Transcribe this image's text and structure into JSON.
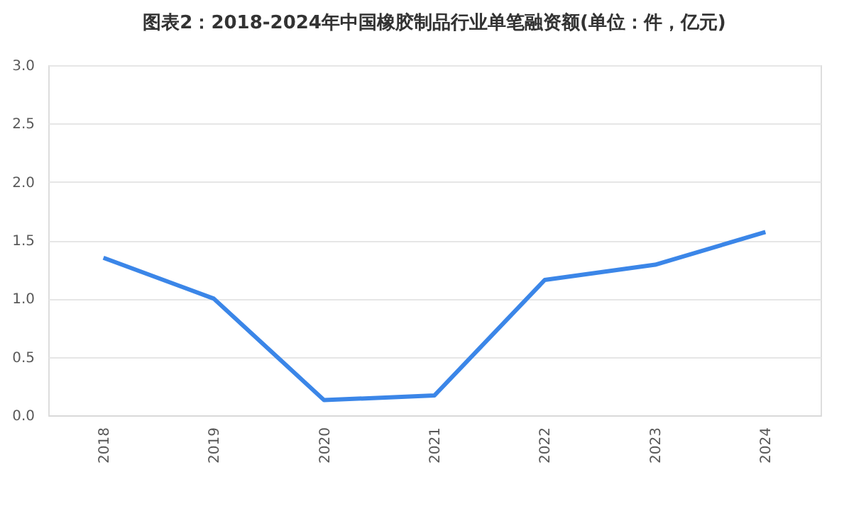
{
  "chart_data": {
    "type": "line",
    "title": "图表2：2018-2024年中国橡胶制品行业单笔融资额(单位：件，亿元)",
    "categories": [
      "2018",
      "2019",
      "2020",
      "2021",
      "2022",
      "2023",
      "2024"
    ],
    "series": [
      {
        "color": "#3b86e8",
        "values": [
          1.35,
          1.0,
          0.13,
          0.17,
          1.16,
          1.29,
          1.57
        ]
      }
    ],
    "ylim": [
      0,
      3.0
    ],
    "yticks": [
      {
        "value": 0,
        "label": "0.0"
      },
      0.5,
      {
        "value": 1,
        "label": "1.0"
      },
      1.5,
      {
        "value": 2,
        "label": "2.0"
      },
      2.5,
      {
        "value": 3,
        "label": "3.0"
      }
    ],
    "grid": "y",
    "marker": "none",
    "line_style": "solid"
  }
}
